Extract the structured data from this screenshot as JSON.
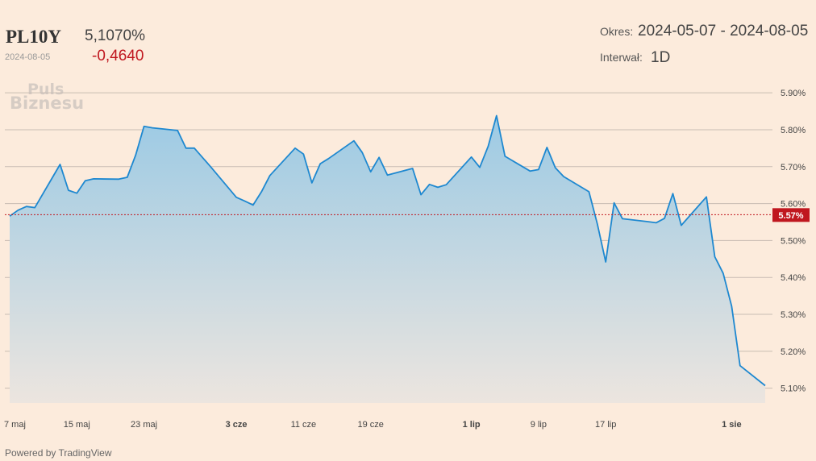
{
  "header": {
    "symbol": "PL10Y",
    "price": "5,1070%",
    "date": "2024-08-05",
    "change": "-0,4640",
    "period_label": "Okres:",
    "period_value": "2024-05-07 - 2024-08-05",
    "interval_label": "Interwał:",
    "interval_value": "1D"
  },
  "watermark": {
    "line1": "Puls",
    "line2": "Biznesu"
  },
  "footer": {
    "powered_by": "Powered by TradingView"
  },
  "colors": {
    "line": "#1e88d0",
    "fill_top": "#9ccae4",
    "fill_bottom": "#ece5df",
    "reference": "#c0171f",
    "gridline": "#c9bdb3"
  },
  "chart_data": {
    "type": "area",
    "title": "",
    "xlabel": "",
    "ylabel": "",
    "ylim": [
      5.06,
      5.933
    ],
    "grid": true,
    "reference_line": {
      "value": 5.57,
      "label": "5.57%"
    },
    "y_ticks": [
      {
        "value": 5.9,
        "label": "5.90%"
      },
      {
        "value": 5.8,
        "label": "5.80%"
      },
      {
        "value": 5.7,
        "label": "5.70%"
      },
      {
        "value": 5.6,
        "label": "5.60%"
      },
      {
        "value": 5.5,
        "label": "5.50%"
      },
      {
        "value": 5.4,
        "label": "5.40%"
      },
      {
        "value": 5.3,
        "label": "5.30%"
      },
      {
        "value": 5.2,
        "label": "5.20%"
      },
      {
        "value": 5.1,
        "label": "5.10%"
      }
    ],
    "x_ticks": [
      {
        "date": "2024-05-07",
        "label": "7 maj",
        "bold": false
      },
      {
        "date": "2024-05-15",
        "label": "15 maj",
        "bold": false
      },
      {
        "date": "2024-05-23",
        "label": "23 maj",
        "bold": false
      },
      {
        "date": "2024-06-03",
        "label": "3 cze",
        "bold": true
      },
      {
        "date": "2024-06-11",
        "label": "11 cze",
        "bold": false
      },
      {
        "date": "2024-06-19",
        "label": "19 cze",
        "bold": false
      },
      {
        "date": "2024-07-01",
        "label": "1 lip",
        "bold": true
      },
      {
        "date": "2024-07-09",
        "label": "9 lip",
        "bold": false
      },
      {
        "date": "2024-07-17",
        "label": "17 lip",
        "bold": false
      },
      {
        "date": "2024-08-01",
        "label": "1 sie",
        "bold": true
      }
    ],
    "series": [
      {
        "values": [
          [
            "2024-05-07",
            5.566
          ],
          [
            "2024-05-08",
            5.582
          ],
          [
            "2024-05-09",
            5.592
          ],
          [
            "2024-05-10",
            5.589
          ],
          [
            "2024-05-13",
            5.706
          ],
          [
            "2024-05-14",
            5.636
          ],
          [
            "2024-05-15",
            5.628
          ],
          [
            "2024-05-16",
            5.662
          ],
          [
            "2024-05-17",
            5.667
          ],
          [
            "2024-05-20",
            5.666
          ],
          [
            "2024-05-21",
            5.671
          ],
          [
            "2024-05-22",
            5.731
          ],
          [
            "2024-05-23",
            5.809
          ],
          [
            "2024-05-24",
            5.805
          ],
          [
            "2024-05-27",
            5.798
          ],
          [
            "2024-05-28",
            5.75
          ],
          [
            "2024-05-29",
            5.75
          ],
          [
            "2024-05-31",
            5.698
          ],
          [
            "2024-06-03",
            5.617
          ],
          [
            "2024-06-04",
            5.607
          ],
          [
            "2024-06-05",
            5.596
          ],
          [
            "2024-06-06",
            5.632
          ],
          [
            "2024-06-07",
            5.676
          ],
          [
            "2024-06-10",
            5.75
          ],
          [
            "2024-06-11",
            5.734
          ],
          [
            "2024-06-12",
            5.656
          ],
          [
            "2024-06-13",
            5.708
          ],
          [
            "2024-06-14",
            5.722
          ],
          [
            "2024-06-17",
            5.77
          ],
          [
            "2024-06-18",
            5.738
          ],
          [
            "2024-06-19",
            5.686
          ],
          [
            "2024-06-20",
            5.725
          ],
          [
            "2024-06-21",
            5.677
          ],
          [
            "2024-06-24",
            5.695
          ],
          [
            "2024-06-25",
            5.624
          ],
          [
            "2024-06-26",
            5.652
          ],
          [
            "2024-06-27",
            5.644
          ],
          [
            "2024-06-28",
            5.651
          ],
          [
            "2024-07-01",
            5.726
          ],
          [
            "2024-07-02",
            5.698
          ],
          [
            "2024-07-03",
            5.755
          ],
          [
            "2024-07-04",
            5.838
          ],
          [
            "2024-07-05",
            5.728
          ],
          [
            "2024-07-08",
            5.688
          ],
          [
            "2024-07-09",
            5.692
          ],
          [
            "2024-07-10",
            5.752
          ],
          [
            "2024-07-11",
            5.697
          ],
          [
            "2024-07-12",
            5.673
          ],
          [
            "2024-07-15",
            5.632
          ],
          [
            "2024-07-16",
            5.545
          ],
          [
            "2024-07-17",
            5.442
          ],
          [
            "2024-07-18",
            5.602
          ],
          [
            "2024-07-19",
            5.559
          ],
          [
            "2024-07-22",
            5.551
          ],
          [
            "2024-07-23",
            5.548
          ],
          [
            "2024-07-24",
            5.56
          ],
          [
            "2024-07-25",
            5.627
          ],
          [
            "2024-07-26",
            5.541
          ],
          [
            "2024-07-29",
            5.618
          ],
          [
            "2024-07-30",
            5.456
          ],
          [
            "2024-07-31",
            5.411
          ],
          [
            "2024-08-01",
            5.322
          ],
          [
            "2024-08-02",
            5.161
          ],
          [
            "2024-08-05",
            5.107
          ]
        ]
      }
    ]
  }
}
